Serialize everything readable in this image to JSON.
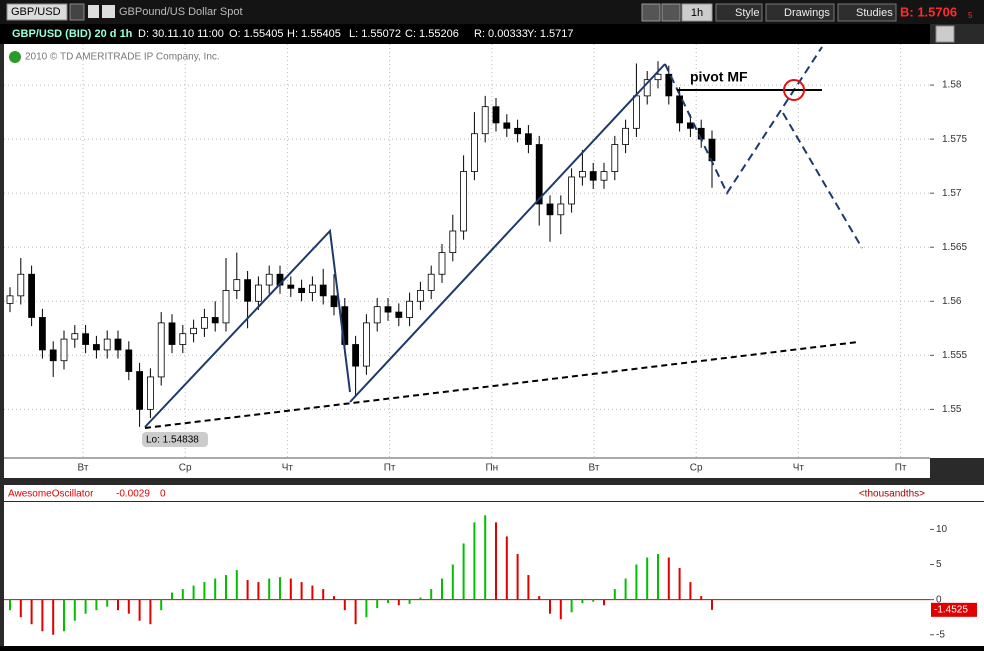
{
  "toolbar": {
    "symbol": "GBP/USD",
    "description": "GBPound/US Dollar Spot",
    "interval": "1h",
    "style": "Style",
    "drawings": "Drawings",
    "studies": "Studies",
    "bid": "B: 1.5706",
    "bid_fraction": "5"
  },
  "info": [
    "GBP/USD (BID) 20 d 1h",
    "D: 30.11.10 11:00",
    "O: 1.55405",
    "H: 1.55405",
    "L: 1.55072",
    "C: 1.55206",
    "R: 0.00333",
    "Y: 1.5717"
  ],
  "copyright": "2010 © TD AMERITRADE IP Company, Inc.",
  "price_chart": {
    "type": "candlestick",
    "ylim": [
      1.5455,
      1.5838
    ],
    "yticks": [
      1.58,
      1.575,
      1.57,
      1.565,
      1.56,
      1.555,
      1.55
    ],
    "grid": true,
    "xtick_labels": [
      "Вт",
      "Ср",
      "Чт",
      "Пт",
      "Пн",
      "Вт",
      "Ср",
      "Чт",
      "Пт"
    ],
    "pivot_label": "pivot MF",
    "low_label": "Lo: 1.54838",
    "candles": [
      [
        1.5598,
        1.5613,
        1.559,
        1.5605
      ],
      [
        1.5605,
        1.564,
        1.5597,
        1.5625
      ],
      [
        1.5625,
        1.5633,
        1.5577,
        1.5585
      ],
      [
        1.5585,
        1.5593,
        1.5547,
        1.5555
      ],
      [
        1.5555,
        1.5563,
        1.553,
        1.5545
      ],
      [
        1.5545,
        1.5573,
        1.5537,
        1.5565
      ],
      [
        1.5565,
        1.5578,
        1.5557,
        1.557
      ],
      [
        1.557,
        1.5578,
        1.5552,
        1.556
      ],
      [
        1.556,
        1.5568,
        1.5547,
        1.5555
      ],
      [
        1.5555,
        1.5573,
        1.5547,
        1.5565
      ],
      [
        1.5565,
        1.5573,
        1.5547,
        1.5555
      ],
      [
        1.5555,
        1.5563,
        1.5527,
        1.5535
      ],
      [
        1.5535,
        1.5543,
        1.54838,
        1.55
      ],
      [
        1.55,
        1.5538,
        1.5492,
        1.553
      ],
      [
        1.553,
        1.559,
        1.5522,
        1.558
      ],
      [
        1.558,
        1.5588,
        1.5552,
        1.556
      ],
      [
        1.556,
        1.5578,
        1.5552,
        1.557
      ],
      [
        1.557,
        1.5583,
        1.5562,
        1.5575
      ],
      [
        1.5575,
        1.5593,
        1.5567,
        1.5585
      ],
      [
        1.5585,
        1.56,
        1.5572,
        1.558
      ],
      [
        1.558,
        1.564,
        1.5572,
        1.561
      ],
      [
        1.561,
        1.5645,
        1.5602,
        1.562
      ],
      [
        1.562,
        1.5628,
        1.5575,
        1.56
      ],
      [
        1.56,
        1.5623,
        1.5592,
        1.5615
      ],
      [
        1.5615,
        1.5633,
        1.5607,
        1.5625
      ],
      [
        1.5625,
        1.5633,
        1.5607,
        1.5615
      ],
      [
        1.5615,
        1.5623,
        1.5604,
        1.5612
      ],
      [
        1.5612,
        1.562,
        1.56,
        1.5608
      ],
      [
        1.5608,
        1.5623,
        1.56,
        1.5615
      ],
      [
        1.5615,
        1.563,
        1.5597,
        1.5605
      ],
      [
        1.5605,
        1.5625,
        1.5587,
        1.5595
      ],
      [
        1.5595,
        1.5603,
        1.5552,
        1.556
      ],
      [
        1.556,
        1.5568,
        1.5512,
        1.554
      ],
      [
        1.554,
        1.5588,
        1.5532,
        1.558
      ],
      [
        1.558,
        1.5603,
        1.5572,
        1.5595
      ],
      [
        1.5595,
        1.5603,
        1.5582,
        1.559
      ],
      [
        1.559,
        1.5598,
        1.5577,
        1.5585
      ],
      [
        1.5585,
        1.5608,
        1.5577,
        1.56
      ],
      [
        1.56,
        1.5618,
        1.5592,
        1.561
      ],
      [
        1.561,
        1.5633,
        1.5602,
        1.5625
      ],
      [
        1.5625,
        1.5653,
        1.5617,
        1.5645
      ],
      [
        1.5645,
        1.568,
        1.5637,
        1.5665
      ],
      [
        1.5665,
        1.5735,
        1.5657,
        1.572
      ],
      [
        1.572,
        1.5775,
        1.5712,
        1.5755
      ],
      [
        1.5755,
        1.579,
        1.5747,
        1.578
      ],
      [
        1.578,
        1.5788,
        1.5757,
        1.5765
      ],
      [
        1.5765,
        1.5773,
        1.5752,
        1.576
      ],
      [
        1.576,
        1.5768,
        1.5747,
        1.5755
      ],
      [
        1.5755,
        1.5763,
        1.5737,
        1.5745
      ],
      [
        1.5745,
        1.5753,
        1.567,
        1.569
      ],
      [
        1.569,
        1.5698,
        1.5655,
        1.568
      ],
      [
        1.568,
        1.5698,
        1.5662,
        1.569
      ],
      [
        1.569,
        1.5723,
        1.5682,
        1.5715
      ],
      [
        1.5715,
        1.574,
        1.5707,
        1.572
      ],
      [
        1.572,
        1.5728,
        1.5704,
        1.5712
      ],
      [
        1.5712,
        1.5728,
        1.5704,
        1.572
      ],
      [
        1.572,
        1.5753,
        1.5712,
        1.5745
      ],
      [
        1.5745,
        1.5768,
        1.5737,
        1.576
      ],
      [
        1.576,
        1.582,
        1.5752,
        1.579
      ],
      [
        1.579,
        1.5813,
        1.5782,
        1.5805
      ],
      [
        1.5805,
        1.5822,
        1.5797,
        1.581
      ],
      [
        1.581,
        1.5818,
        1.5782,
        1.579
      ],
      [
        1.579,
        1.5798,
        1.5757,
        1.5765
      ],
      [
        1.5765,
        1.5773,
        1.5752,
        1.576
      ],
      [
        1.576,
        1.5768,
        1.5742,
        1.575
      ],
      [
        1.575,
        1.5758,
        1.5705,
        1.573
      ]
    ]
  },
  "oscillator": {
    "type": "bar",
    "name": "AwesomeOscillator",
    "value": "-0.0029",
    "param": "0",
    "units": "<thousandths>",
    "last_label": "-1.4525",
    "ylim": [
      -6.6,
      13.9
    ],
    "yticks": [
      10,
      5,
      0,
      -5
    ],
    "up_color": "#00c000",
    "down_color": "#e00000",
    "values": [
      -1.5,
      -2.5,
      -3.5,
      -4.5,
      -5,
      -4.5,
      -3,
      -2,
      -1.5,
      -1,
      -1.5,
      -2,
      -3,
      -3.5,
      -1.5,
      1,
      1.5,
      2,
      2.5,
      3,
      3.5,
      4.2,
      2.8,
      2.5,
      3,
      3.2,
      3,
      2.5,
      2,
      1.5,
      0.5,
      -1.5,
      -3.5,
      -2.5,
      -1.2,
      -0.5,
      -0.8,
      -0.6,
      0.3,
      1.5,
      3,
      5,
      8,
      11,
      12,
      11,
      9,
      6.5,
      3.5,
      0.5,
      -2,
      -2.8,
      -1.8,
      -0.5,
      -0.3,
      -0.8,
      1.5,
      3,
      5,
      6,
      6.5,
      6,
      4.5,
      2.5,
      0.5,
      -1.4525
    ]
  }
}
